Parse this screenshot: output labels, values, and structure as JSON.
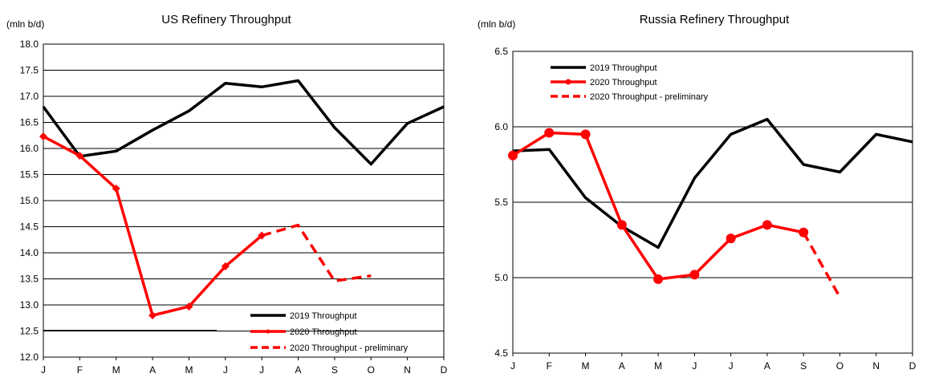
{
  "chart_data": [
    {
      "type": "line",
      "title": "US Refinery Throughput",
      "ylabel": "(mln b/d)",
      "xlabel": "",
      "categories": [
        "J",
        "F",
        "M",
        "A",
        "M",
        "J",
        "J",
        "A",
        "S",
        "O",
        "N",
        "D"
      ],
      "ylim": [
        12.0,
        18.0
      ],
      "yticks": [
        "12.0",
        "12.5",
        "13.0",
        "13.5",
        "14.0",
        "14.5",
        "15.0",
        "15.5",
        "16.0",
        "16.5",
        "17.0",
        "17.5",
        "18.0"
      ],
      "yticks_values": [
        12.0,
        12.5,
        13.0,
        13.5,
        14.0,
        14.5,
        15.0,
        15.5,
        16.0,
        16.5,
        17.0,
        17.5,
        18.0
      ],
      "grid": true,
      "legend_position": "bottom-right",
      "series": [
        {
          "name": "2019 Throughput",
          "color": "#000000",
          "style": "solid",
          "marker": "none",
          "values": [
            16.8,
            15.85,
            15.95,
            16.35,
            16.72,
            17.25,
            17.18,
            17.3,
            16.4,
            15.7,
            16.48,
            16.8
          ]
        },
        {
          "name": "2020 Throughput",
          "color": "#ff0000",
          "style": "solid",
          "marker": "diamond",
          "values": [
            16.23,
            15.86,
            15.23,
            12.8,
            12.97,
            13.74,
            14.33,
            null,
            null,
            null,
            null,
            null
          ]
        },
        {
          "name": "2020 Throughput - preliminary",
          "color": "#ff0000",
          "style": "dashed",
          "marker": "none",
          "values": [
            null,
            null,
            null,
            null,
            null,
            null,
            14.33,
            14.53,
            13.46,
            13.56,
            null,
            null
          ]
        }
      ]
    },
    {
      "type": "line",
      "title": "Russia Refinery Throughput",
      "ylabel": "(mln b/d)",
      "xlabel": "",
      "categories": [
        "J",
        "F",
        "M",
        "A",
        "M",
        "J",
        "J",
        "A",
        "S",
        "O",
        "N",
        "D"
      ],
      "ylim": [
        4.5,
        6.5
      ],
      "yticks": [
        "4.5",
        "5.0",
        "5.5",
        "6.0",
        "6.5"
      ],
      "yticks_values": [
        4.5,
        5.0,
        5.5,
        6.0,
        6.5
      ],
      "grid": true,
      "legend_position": "top-left",
      "series": [
        {
          "name": "2019 Throughput",
          "color": "#000000",
          "style": "solid",
          "marker": "none",
          "values": [
            5.84,
            5.85,
            5.53,
            5.34,
            5.2,
            5.66,
            5.95,
            6.05,
            5.75,
            5.7,
            5.95,
            5.9
          ]
        },
        {
          "name": "2020 Throughput",
          "color": "#ff0000",
          "style": "solid",
          "marker": "circle",
          "values": [
            5.81,
            5.96,
            5.95,
            5.35,
            4.99,
            5.02,
            5.26,
            5.35,
            5.3,
            null,
            null,
            null
          ]
        },
        {
          "name": "2020 Throughput - preliminary",
          "color": "#ff0000",
          "style": "dashed",
          "marker": "none",
          "values": [
            null,
            null,
            null,
            null,
            null,
            null,
            null,
            null,
            5.3,
            4.87,
            null,
            null
          ]
        }
      ]
    }
  ]
}
